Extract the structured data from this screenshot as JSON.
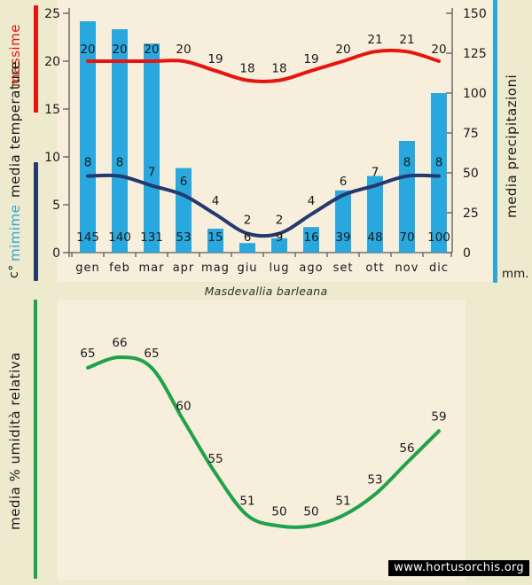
{
  "title": "Masdevallia barleana",
  "watermark": "www.hortusorchis.org",
  "colors": {
    "background": "#eeeacd",
    "plot_background": "#f7eedb",
    "bar_blue": "#29a8df",
    "max_line_red": "#e6150f",
    "min_line_navy": "#243a6e",
    "humidity_green": "#1ea24c",
    "axis_gray": "#5a5a5a",
    "text_dark": "#1a1a1a"
  },
  "chart_data": [
    {
      "type": "bar",
      "title": "Masdevallia barleana",
      "categories": [
        "gen",
        "feb",
        "mar",
        "apr",
        "mag",
        "giu",
        "lug",
        "ago",
        "set",
        "ott",
        "nov",
        "dic"
      ],
      "series": [
        {
          "name": "massime",
          "chart": "line",
          "axis": "temperature",
          "color": "#e6150f",
          "values": [
            20,
            20,
            20,
            20,
            19,
            18,
            18,
            19,
            20,
            21,
            21,
            20
          ]
        },
        {
          "name": "mimime",
          "chart": "line",
          "axis": "temperature",
          "color": "#243a6e",
          "values": [
            8,
            8,
            7,
            6,
            4,
            2,
            2,
            4,
            6,
            7,
            8,
            8
          ]
        },
        {
          "name": "media precipitazioni",
          "chart": "bar",
          "axis": "precipitation",
          "color": "#29a8df",
          "values": [
            145,
            140,
            131,
            53,
            15,
            6,
            9,
            16,
            39,
            48,
            70,
            100
          ]
        }
      ],
      "axes": {
        "left": {
          "label": "media temperature",
          "unit": "c°",
          "series_labels": {
            "max": "massime",
            "min": "mimime"
          },
          "ticks": [
            25,
            20,
            15,
            10,
            5,
            0
          ],
          "range": [
            0,
            25
          ]
        },
        "right": {
          "label": "media precipitazioni",
          "unit": "mm.",
          "ticks": [
            150,
            125,
            100,
            75,
            50,
            25,
            0
          ],
          "range": [
            0,
            150
          ]
        }
      },
      "grid": false,
      "legend": "none"
    },
    {
      "type": "line",
      "ylabel": "media % umidità relativa",
      "series": [
        {
          "name": "media % umidità relativa",
          "color": "#1ea24c",
          "values": [
            65,
            66,
            65,
            60,
            55,
            51,
            50,
            50,
            51,
            53,
            56,
            59
          ]
        }
      ],
      "value_range_shown": [
        50,
        66
      ],
      "grid": false,
      "legend": "none"
    }
  ]
}
